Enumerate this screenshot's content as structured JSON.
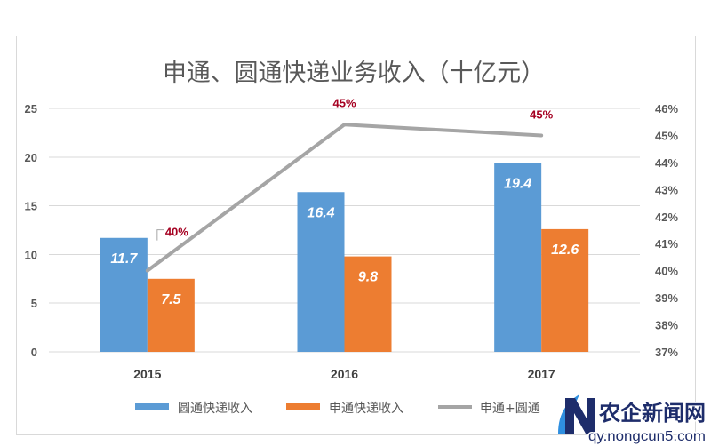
{
  "chart_data": {
    "type": "bar",
    "title": "申通、圆通快递业务收入（十亿元）",
    "categories": [
      "2015",
      "2016",
      "2017"
    ],
    "series": [
      {
        "name": "圆通快递收入",
        "type": "bar",
        "axis": "left",
        "color": "#5B9BD5",
        "values": [
          11.7,
          16.4,
          19.4
        ]
      },
      {
        "name": "申通快递收入",
        "type": "bar",
        "axis": "left",
        "color": "#ED7D31",
        "values": [
          7.5,
          9.8,
          12.6
        ]
      },
      {
        "name": "申通+圆通",
        "type": "line",
        "axis": "right",
        "color": "#A5A5A5",
        "label_color": "#A50021",
        "values": [
          40.0,
          45.4,
          45.0
        ],
        "labels": [
          "40%",
          "45%",
          "45%"
        ]
      }
    ],
    "y_left": {
      "min": 0,
      "max": 25,
      "ticks": [
        "0",
        "5",
        "10",
        "15",
        "20",
        "25"
      ]
    },
    "y_right": {
      "min": 37,
      "max": 46,
      "ticks": [
        "37%",
        "38%",
        "39%",
        "40%",
        "41%",
        "42%",
        "43%",
        "44%",
        "45%",
        "46%"
      ]
    },
    "grid": true,
    "legend": "bottom"
  },
  "watermark": {
    "name": "农企新闻网",
    "url": "qy.nongcun5.com",
    "colors": {
      "primary": "#1E2D6B",
      "accent": "#2F8FE0"
    }
  }
}
